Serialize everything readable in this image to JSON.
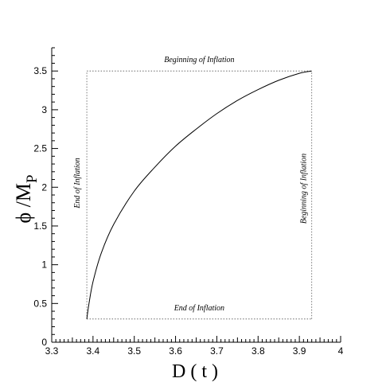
{
  "chart_data": {
    "type": "line",
    "xlabel": "D ( t )",
    "ylabel_main": "ϕ /M",
    "ylabel_sub": "P",
    "xlim": [
      3.3,
      4.0
    ],
    "ylim": [
      0,
      3.8
    ],
    "x_ticks": [
      "3.3",
      "3.4",
      "3.5",
      "3.6",
      "3.7",
      "3.8",
      "3.9",
      "4"
    ],
    "y_ticks": [
      "0",
      "0.5",
      "1",
      "1.5",
      "2",
      "2.5",
      "3",
      "3.5"
    ],
    "grid": false,
    "series": [
      {
        "x": [
          3.385,
          3.39,
          3.4,
          3.42,
          3.45,
          3.5,
          3.55,
          3.6,
          3.65,
          3.7,
          3.75,
          3.8,
          3.85,
          3.9,
          3.93
        ],
        "y": [
          0.3,
          0.49,
          0.78,
          1.15,
          1.52,
          1.95,
          2.26,
          2.53,
          2.75,
          2.95,
          3.12,
          3.26,
          3.38,
          3.47,
          3.5
        ]
      }
    ],
    "reference_lines": [
      {
        "orientation": "horizontal",
        "value": 3.5,
        "label": "Beginning of Inflation"
      },
      {
        "orientation": "horizontal",
        "value": 0.3,
        "label": "End of Inflation"
      },
      {
        "orientation": "vertical",
        "value": 3.385,
        "label": "End of Inflation"
      },
      {
        "orientation": "vertical",
        "value": 3.93,
        "label": "Beginning of Inflation"
      }
    ]
  }
}
